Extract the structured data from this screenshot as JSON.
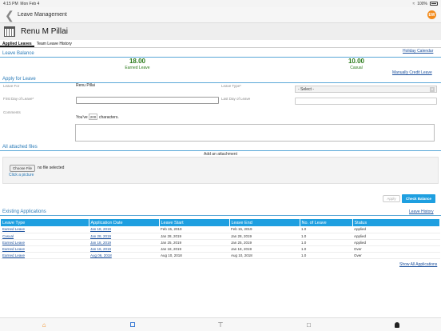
{
  "status_bar": {
    "time": "4:15 PM",
    "date": "Mon Feb 4",
    "battery": "100%"
  },
  "nav": {
    "title": "Leave Management",
    "logo_text": "EW"
  },
  "profile": {
    "name": "Renu M Pillai"
  },
  "tabs": [
    {
      "label": "Applied Leaves",
      "active": true
    },
    {
      "label": "Team Leave History",
      "active": false
    }
  ],
  "leave_balance": {
    "title": "Leave Balance",
    "holiday_link": "Holiday Calendar",
    "manual_credit_link": "Manually Credit Leave",
    "earned": {
      "value": "18.00",
      "label": "Earned Leave"
    },
    "casual": {
      "value": "10.00",
      "label": "Casual"
    }
  },
  "apply": {
    "title": "Apply for Leave",
    "leave_for_label": "Leave For",
    "leave_for_value": "Renu Pillai",
    "leave_type_label": "Leave Type*",
    "leave_type_value": "- Select -",
    "first_day_label": "First Day of Leave*",
    "first_day_value": "",
    "last_day_label": "Last Day of Leave",
    "last_day_value": "",
    "comments_label": "Comments",
    "chars_prefix": "You've",
    "chars_count": "200",
    "chars_suffix": "characters.",
    "comments_value": ""
  },
  "attachments": {
    "title": "All attached files",
    "add_label": "Add an attachment",
    "choose_button": "Choose File",
    "no_file": "no file selected",
    "click_picture": "Click a picture"
  },
  "actions": {
    "apply_label": "Apply",
    "check_balance_label": "Check Balance"
  },
  "existing": {
    "title": "Existing Applications",
    "history_link": "Leave History",
    "show_all_link": "Show All Applications",
    "columns": [
      "Leave Type",
      "Application Date",
      "Leave Start",
      "Leave End",
      "No. of Leave",
      "Status"
    ],
    "rows": [
      [
        "Earned Leave",
        "Jan 18, 2019",
        "Feb 15, 2019",
        "Feb 15, 2019",
        "1.0",
        "Applied"
      ],
      [
        "Casual",
        "Jan 28, 2019",
        "Jan 28, 2019",
        "Jan 28, 2019",
        "1.0",
        "Applied"
      ],
      [
        "Earned Leave",
        "Jan 18, 2019",
        "Jan 25, 2019",
        "Jan 25, 2019",
        "1.0",
        "Applied"
      ],
      [
        "Earned Leave",
        "Jan 16, 2019",
        "Jan 18, 2019",
        "Jan 18, 2019",
        "1.0",
        "Over"
      ],
      [
        "Earned Leave",
        "Aug 06, 2018",
        "Aug 10, 2018",
        "Aug 10, 2018",
        "1.0",
        "Over"
      ]
    ]
  },
  "bottom_bar": {
    "icons": [
      "home-icon",
      "square-icon",
      "hierarchy-icon",
      "chat-icon",
      "user-icon"
    ],
    "accent": "#f28a1a"
  }
}
